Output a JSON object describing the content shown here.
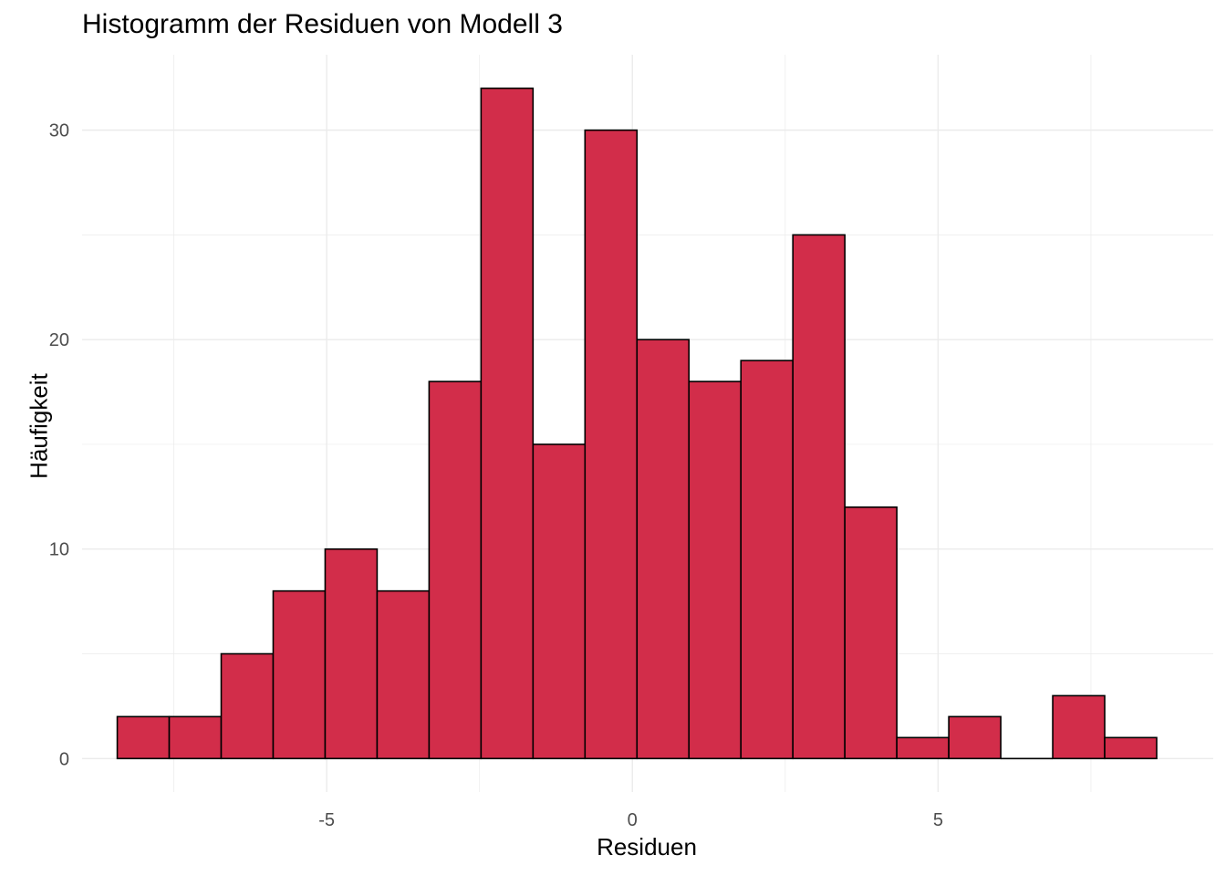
{
  "chart_data": {
    "type": "bar",
    "title": "Histogramm der Residuen von Modell 3",
    "xlabel": "Residuen",
    "ylabel": "Häufigkeit",
    "bin_width": 0.85,
    "bins": [
      {
        "center": -8.0,
        "count": 2
      },
      {
        "center": -7.15,
        "count": 2
      },
      {
        "center": -6.3,
        "count": 5
      },
      {
        "center": -5.45,
        "count": 8
      },
      {
        "center": -4.6,
        "count": 10
      },
      {
        "center": -3.75,
        "count": 8
      },
      {
        "center": -2.9,
        "count": 18
      },
      {
        "center": -2.05,
        "count": 32
      },
      {
        "center": -1.2,
        "count": 15
      },
      {
        "center": -0.35,
        "count": 30
      },
      {
        "center": 0.5,
        "count": 20
      },
      {
        "center": 1.35,
        "count": 18
      },
      {
        "center": 2.2,
        "count": 19
      },
      {
        "center": 3.05,
        "count": 25
      },
      {
        "center": 3.9,
        "count": 12
      },
      {
        "center": 4.75,
        "count": 1
      },
      {
        "center": 5.6,
        "count": 2
      },
      {
        "center": 6.45,
        "count": 0
      },
      {
        "center": 7.3,
        "count": 3
      },
      {
        "center": 8.15,
        "count": 1
      }
    ],
    "xlim": [
      -9.0,
      9.5
    ],
    "ylim": [
      -1.6,
      33.6
    ],
    "x_ticks": [
      "-5",
      "0",
      "5"
    ],
    "y_ticks": [
      "0",
      "10",
      "20",
      "30"
    ],
    "grid": true,
    "colors": {
      "fill": "#d22d4a",
      "outline": "#000000",
      "grid": "#ebebeb",
      "tick_text": "#4d4d4d"
    }
  }
}
